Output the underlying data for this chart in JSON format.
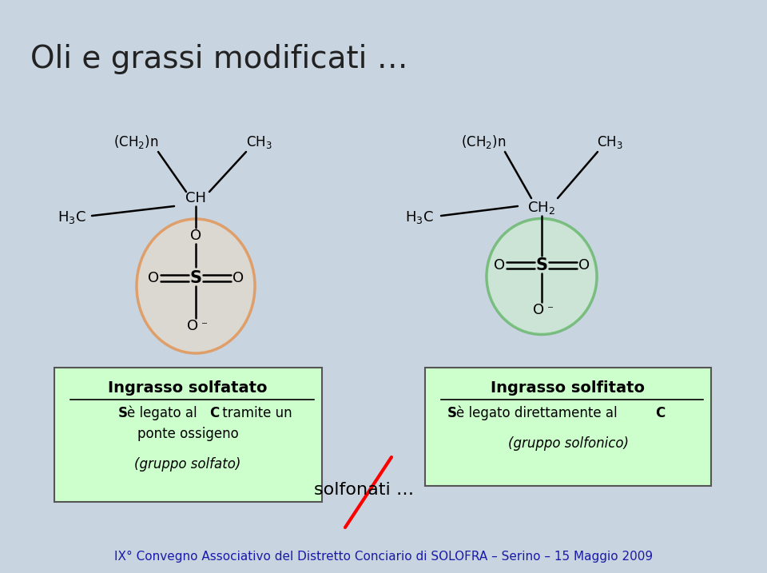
{
  "title": "Oli e grassi modificati …",
  "title_fontsize": 28,
  "title_color": "#222222",
  "bg_color": "#c8d4e0",
  "footer_text": "IX° Convegno Associativo del Distretto Conciario di SOLOFRA – Serino – 15 Maggio 2009",
  "footer_color": "#1a1aaa",
  "footer_fontsize": 11,
  "box1_title": "Ingrasso solfatato",
  "box1_line2": "ponte ossigeno",
  "box1_line3": "(gruppo solfato)",
  "box2_title": "Ingrasso solfitato",
  "box2_line3": "(gruppo solfonico)",
  "box_bg": "#ccffcc",
  "box_edge": "#555555",
  "solfonati_text": "solfonati …",
  "orange_ellipse_color": "#e87a20",
  "orange_ellipse_fill": "#e8dcc8",
  "green_ellipse_color": "#44aa44",
  "green_ellipse_fill": "#d0f0d0"
}
